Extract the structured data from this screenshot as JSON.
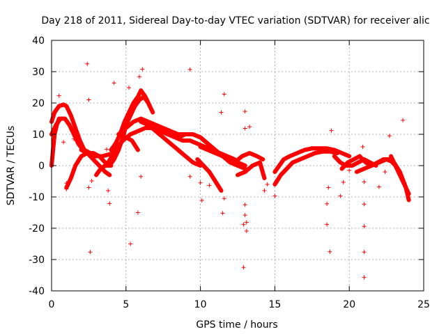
{
  "chart_data": {
    "type": "scatter",
    "title": "Day 218 of 2011, Sidereal Day-to-day VTEC variation (SDTVAR) for receiver alic",
    "xlabel": "GPS time / hours",
    "ylabel": "SDTVAR / TECUs",
    "xlim": [
      0,
      25
    ],
    "ylim": [
      -40,
      40
    ],
    "xticks": [
      0,
      5,
      10,
      15,
      20,
      25
    ],
    "yticks": [
      -40,
      -30,
      -20,
      -10,
      0,
      10,
      20,
      30,
      40
    ],
    "grid": true,
    "marker": "+",
    "color": "#ff0000",
    "series": [
      {
        "name": "dense-tracks",
        "tracks": [
          {
            "x": [
              0.0,
              0.2,
              0.5,
              0.8,
              1.0,
              1.3,
              1.6,
              1.9,
              2.2,
              2.6,
              3.0,
              3.4,
              3.8,
              4.2
            ],
            "y": [
              14,
              17,
              19,
              19.5,
              19,
              16,
              12,
              8,
              5,
              4,
              3,
              3,
              3.5,
              4
            ]
          },
          {
            "x": [
              0.0,
              0.3,
              0.6,
              0.9,
              1.2,
              1.5,
              1.8,
              2.1,
              2.5,
              2.9
            ],
            "y": [
              10,
              13,
              15,
              15,
              13,
              10,
              7,
              5,
              4,
              3
            ]
          },
          {
            "x": [
              0.0,
              0.1,
              0.2,
              0.35,
              0.5
            ],
            "y": [
              0,
              5,
              10,
              13,
              15
            ]
          },
          {
            "x": [
              1.0,
              1.3,
              1.6,
              2.0,
              2.4,
              2.8,
              3.2,
              3.6,
              4.0
            ],
            "y": [
              -7,
              -4,
              0,
              3,
              4,
              4,
              3,
              1,
              0
            ]
          },
          {
            "x": [
              2.0,
              2.4,
              2.8,
              3.2,
              3.6,
              3.9
            ],
            "y": [
              5,
              4,
              2,
              0,
              -2,
              -3
            ]
          },
          {
            "x": [
              3.0,
              3.3,
              3.6,
              3.9,
              4.2,
              4.5,
              4.8,
              5.0,
              5.3,
              5.6,
              5.9,
              6.2,
              6.5,
              6.8
            ],
            "y": [
              -3,
              -1,
              0,
              0,
              2,
              5,
              9,
              13,
              16,
              19,
              21,
              22,
              20,
              17
            ]
          },
          {
            "x": [
              4.0,
              4.3,
              4.6,
              4.9,
              5.2,
              5.5,
              5.8,
              6.0,
              6.3,
              6.6
            ],
            "y": [
              5,
              7,
              10,
              14,
              17,
              20,
              22,
              24,
              22,
              19
            ]
          },
          {
            "x": [
              4.5,
              5.0,
              5.5,
              6.0,
              6.5,
              7.0,
              7.5,
              8.0,
              8.5,
              9.0,
              9.5,
              10.0,
              10.5
            ],
            "y": [
              10,
              12,
              14,
              15,
              14,
              13,
              12,
              11,
              10,
              10,
              10,
              9,
              7
            ]
          },
          {
            "x": [
              4.8,
              5.3,
              5.8,
              6.3,
              6.8,
              7.3,
              7.8,
              8.3,
              8.8,
              9.3,
              9.8,
              10.3,
              10.8,
              11.3,
              11.8,
              12.3
            ],
            "y": [
              8,
              10,
              11,
              12,
              12,
              11,
              10,
              9,
              8,
              8,
              7,
              6,
              5,
              4,
              3,
              2
            ]
          },
          {
            "x": [
              3.8,
              4.2,
              4.6,
              5.0,
              5.4,
              5.8
            ],
            "y": [
              1,
              4,
              7,
              9,
              8,
              5
            ]
          },
          {
            "x": [
              6.0,
              6.5,
              7.0,
              7.5,
              8.0,
              8.5,
              9.0,
              9.5,
              10.0
            ],
            "y": [
              14,
              13,
              11,
              9,
              7,
              5,
              3,
              1,
              0
            ]
          },
          {
            "x": [
              8.5,
              9.0,
              9.5,
              10.0,
              10.5,
              11.0,
              11.5,
              12.0,
              12.5,
              13.0
            ],
            "y": [
              9,
              10,
              10,
              9,
              7,
              5,
              3,
              2,
              1,
              0
            ]
          },
          {
            "x": [
              10.0,
              10.5,
              11.0,
              11.5,
              12.0,
              12.5,
              13.0
            ],
            "y": [
              6,
              5,
              4,
              3,
              1,
              0,
              -1
            ]
          },
          {
            "x": [
              9.8,
              10.2,
              10.6,
              11.0,
              11.4
            ],
            "y": [
              2,
              0,
              -2,
              -5,
              -8
            ]
          },
          {
            "x": [
              12.3,
              12.8,
              13.3,
              13.8,
              14.2
            ],
            "y": [
              1,
              3,
              4,
              3,
              2
            ]
          },
          {
            "x": [
              12.5,
              13.0,
              13.5,
              14.0,
              14.3
            ],
            "y": [
              -3,
              -2,
              0,
              1,
              -4
            ]
          },
          {
            "x": [
              15.0,
              15.3,
              15.6,
              16.0,
              16.5,
              17.0,
              17.5,
              18.0,
              18.5,
              19.0,
              19.5,
              20.0
            ],
            "y": [
              -2,
              0,
              2,
              3,
              4,
              5,
              5.5,
              5.5,
              5.5,
              5,
              4,
              3
            ]
          },
          {
            "x": [
              15.0,
              15.4,
              15.8,
              16.2,
              16.7,
              17.2,
              17.7,
              18.2,
              18.7,
              19.2
            ],
            "y": [
              -6,
              -3,
              -1,
              1,
              2,
              3,
              4,
              4.5,
              4.5,
              4
            ]
          },
          {
            "x": [
              19.0,
              19.4,
              19.8,
              20.2,
              20.6,
              21.0,
              21.4,
              21.8
            ],
            "y": [
              3,
              1,
              0,
              0,
              1,
              2,
              1,
              0
            ]
          },
          {
            "x": [
              19.5,
              19.9,
              20.3,
              20.7,
              21.1,
              21.5,
              21.9,
              22.3,
              22.7,
              23.1
            ],
            "y": [
              -1,
              1,
              2,
              3,
              1,
              0,
              1,
              2,
              2,
              0
            ]
          },
          {
            "x": [
              20.5,
              21.0,
              21.5,
              22.0,
              22.5,
              23.0,
              23.4,
              23.8,
              24.0
            ],
            "y": [
              -2,
              -1,
              0,
              1,
              2,
              1,
              -2,
              -7,
              -11
            ]
          },
          {
            "x": [
              22.8,
              23.1,
              23.4,
              23.7,
              24.0
            ],
            "y": [
              3,
              0,
              -3,
              -6,
              -9
            ]
          }
        ]
      },
      {
        "name": "scattered-outliers",
        "points": [
          [
            2.4,
            32.5
          ],
          [
            9.3,
            30.7
          ],
          [
            6.1,
            30.8
          ],
          [
            5.9,
            28.4
          ],
          [
            4.2,
            26.4
          ],
          [
            5.2,
            24.9
          ],
          [
            0.5,
            22.3
          ],
          [
            2.5,
            21.0
          ],
          [
            11.6,
            22.8
          ],
          [
            11.4,
            17.0
          ],
          [
            13.0,
            17.3
          ],
          [
            13.3,
            12.4
          ],
          [
            13.0,
            11.9
          ],
          [
            18.8,
            11.2
          ],
          [
            22.7,
            9.5
          ],
          [
            23.6,
            14.5
          ],
          [
            0.8,
            7.5
          ],
          [
            1.5,
            8.5
          ],
          [
            3.7,
            5.2
          ],
          [
            2.7,
            -4.9
          ],
          [
            2.5,
            -7.0
          ],
          [
            1.0,
            -7.5
          ],
          [
            1.0,
            -5.6
          ],
          [
            3.8,
            -8.0
          ],
          [
            3.9,
            -12.1
          ],
          [
            5.8,
            -15.0
          ],
          [
            6.0,
            -3.5
          ],
          [
            9.3,
            -3.5
          ],
          [
            10.0,
            -5.5
          ],
          [
            10.1,
            -11.1
          ],
          [
            10.6,
            -6.3
          ],
          [
            11.5,
            -15.2
          ],
          [
            11.6,
            -10.5
          ],
          [
            12.9,
            -18.8
          ],
          [
            13.1,
            -18.1
          ],
          [
            13.1,
            -20.9
          ],
          [
            13.0,
            -15.8
          ],
          [
            12.9,
            -32.5
          ],
          [
            13.0,
            -12.5
          ],
          [
            14.3,
            -8.0
          ],
          [
            14.5,
            -6.0
          ],
          [
            15.0,
            -9.7
          ],
          [
            18.6,
            -7.0
          ],
          [
            18.5,
            -12.2
          ],
          [
            18.5,
            -18.8
          ],
          [
            18.7,
            -27.5
          ],
          [
            19.4,
            -9.7
          ],
          [
            19.6,
            -5.3
          ],
          [
            21.0,
            -12.3
          ],
          [
            21.0,
            -19.4
          ],
          [
            21.0,
            -27.6
          ],
          [
            21.0,
            -35.7
          ],
          [
            22.0,
            -6.8
          ],
          [
            21.0,
            -5.2
          ],
          [
            2.6,
            -27.6
          ],
          [
            5.3,
            -25.0
          ],
          [
            20.0,
            -1.5
          ],
          [
            20.9,
            6.0
          ],
          [
            22.4,
            -2.0
          ]
        ]
      }
    ]
  }
}
